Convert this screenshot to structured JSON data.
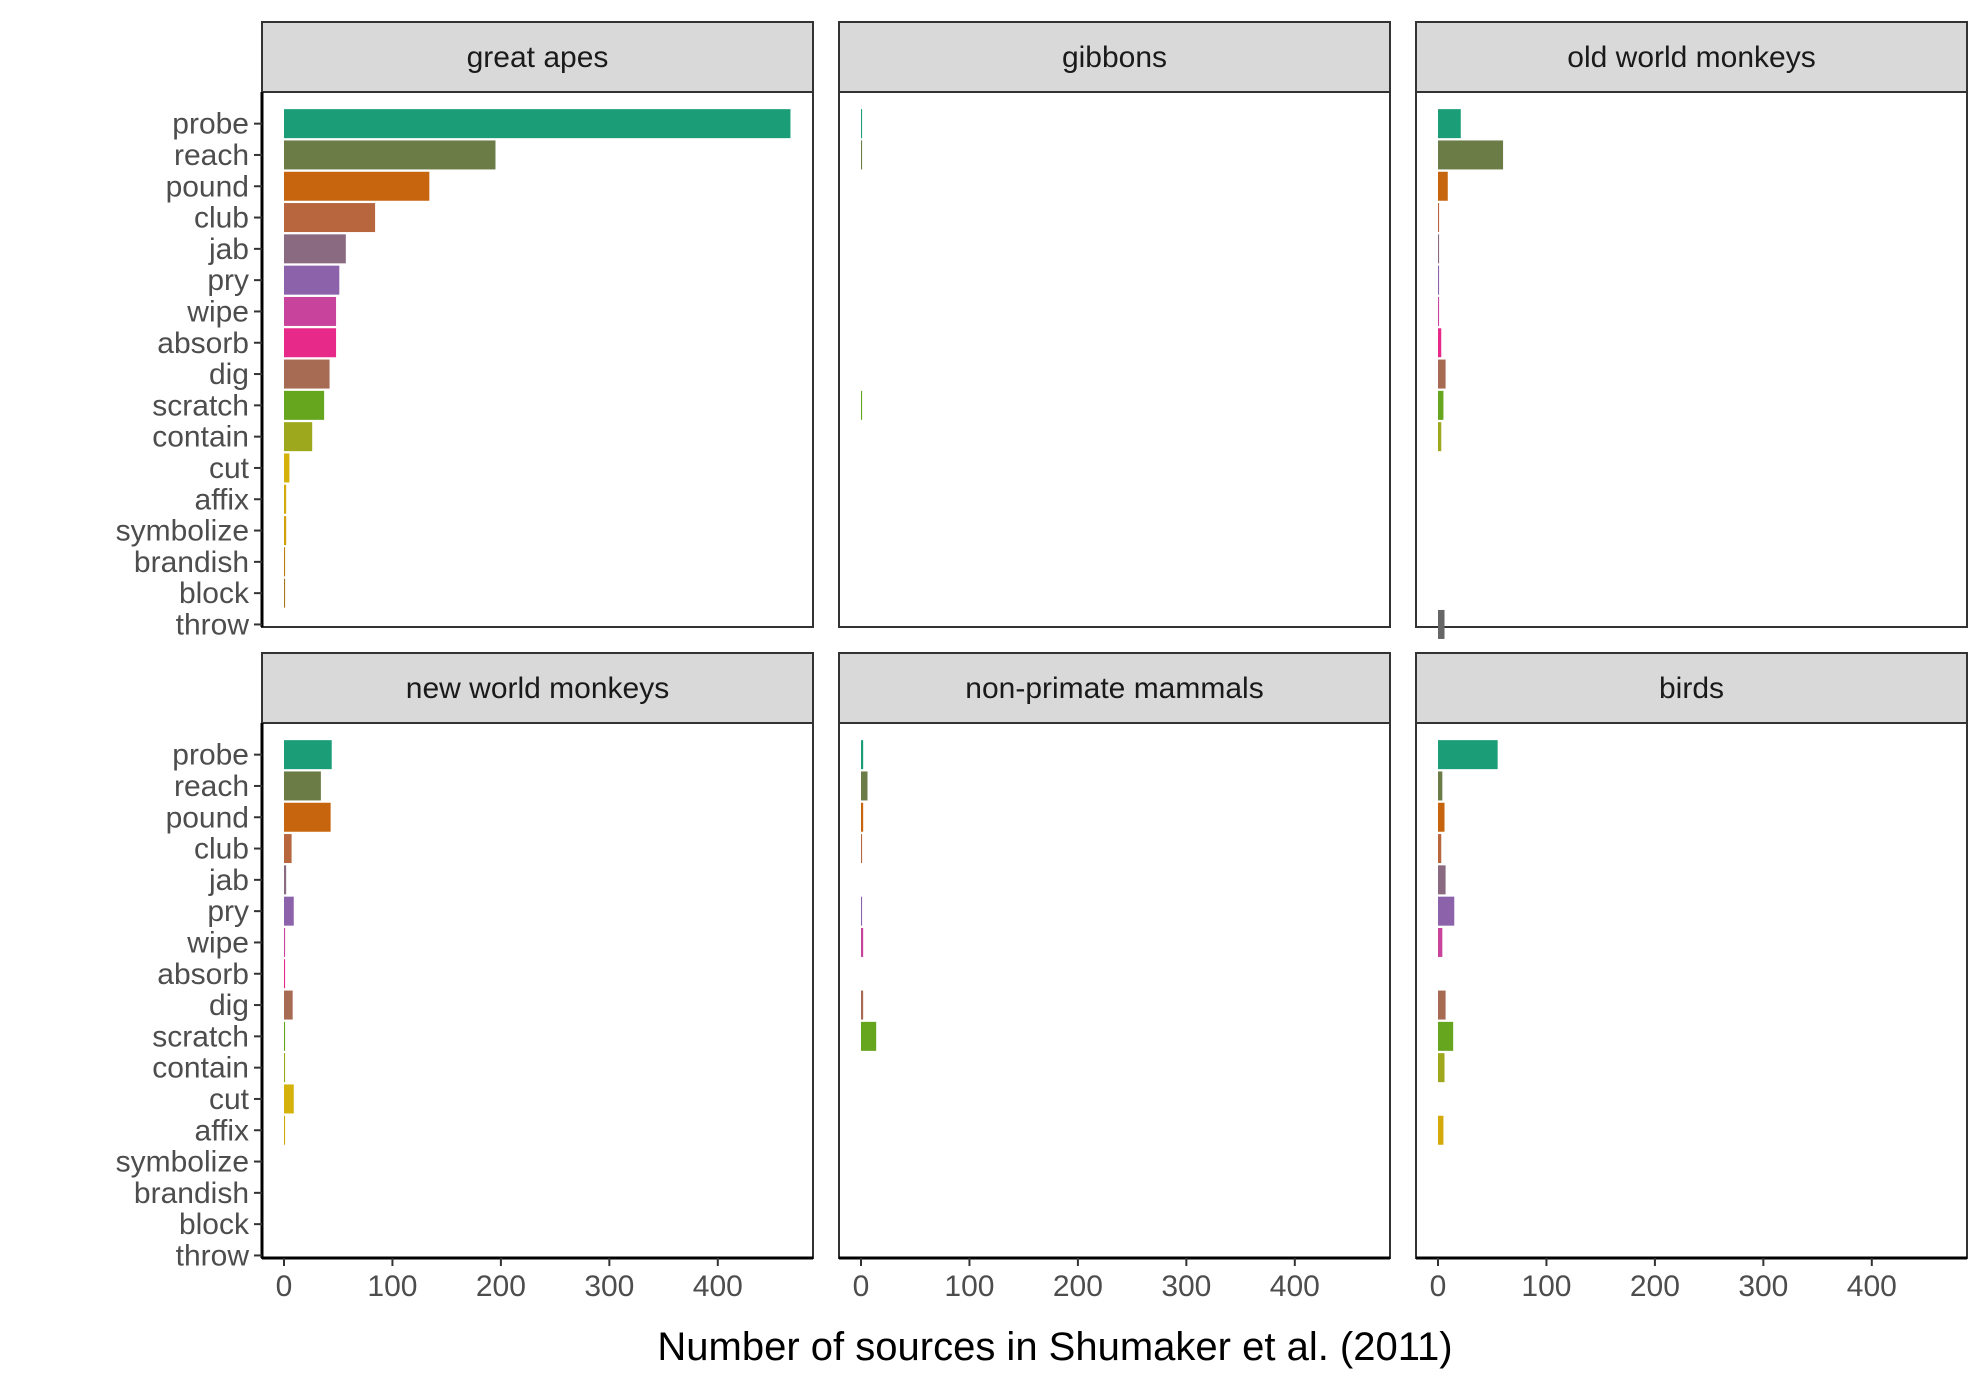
{
  "chart_data": {
    "type": "bar",
    "orientation": "horizontal",
    "facet_layout": "3 columns x 2 rows",
    "xlabel": "Number of sources in Shumaker et al. (2011)",
    "ylabel": "",
    "xlim": [
      0,
      480
    ],
    "xticks": [
      0,
      100,
      200,
      300,
      400
    ],
    "grid": false,
    "categories": [
      "throw",
      "block",
      "brandish",
      "symbolize",
      "affix",
      "cut",
      "contain",
      "scratch",
      "dig",
      "absorb",
      "wipe",
      "pry",
      "jab",
      "club",
      "pound",
      "reach",
      "probe"
    ],
    "category_colors": {
      "throw": "#666666",
      "block": "#a6761d",
      "brandish": "#bd7a12",
      "symbolize": "#d29f08",
      "affix": "#d4a90a",
      "cut": "#d4b20a",
      "contain": "#9ea81d",
      "scratch": "#66a61e",
      "dig": "#a76a52",
      "absorb": "#e7298a",
      "wipe": "#c8449c",
      "pry": "#8c62aa",
      "jab": "#8a6a80",
      "club": "#b8663e",
      "pound": "#c7650f",
      "reach": "#6b7c46",
      "probe": "#1b9e77"
    },
    "panels": [
      {
        "name": "great apes",
        "values": [
          0,
          1,
          1,
          2,
          2,
          5,
          26,
          37,
          42,
          48,
          48,
          51,
          57,
          84,
          134,
          195,
          467
        ]
      },
      {
        "name": "gibbons",
        "values": [
          0,
          0,
          0,
          0,
          0,
          0,
          0,
          1,
          0,
          0,
          0,
          0,
          0,
          0,
          0,
          1,
          1
        ]
      },
      {
        "name": "old world monkeys",
        "values": [
          6,
          0,
          0,
          0,
          0,
          0,
          3,
          5,
          7,
          3,
          1,
          1,
          1,
          1,
          9,
          60,
          21
        ]
      },
      {
        "name": "new world monkeys",
        "values": [
          0,
          0,
          0,
          0,
          1,
          9,
          1,
          1,
          8,
          1,
          1,
          9,
          2,
          7,
          43,
          34,
          44
        ]
      },
      {
        "name": "non-primate mammals",
        "values": [
          0,
          0,
          0,
          0,
          0,
          0,
          0,
          14,
          2,
          0,
          2,
          1,
          0,
          1,
          2,
          6,
          2
        ]
      },
      {
        "name": "birds",
        "values": [
          0,
          0,
          0,
          0,
          5,
          0,
          6,
          14,
          7,
          0,
          4,
          15,
          7,
          3,
          6,
          4,
          55
        ]
      }
    ]
  }
}
